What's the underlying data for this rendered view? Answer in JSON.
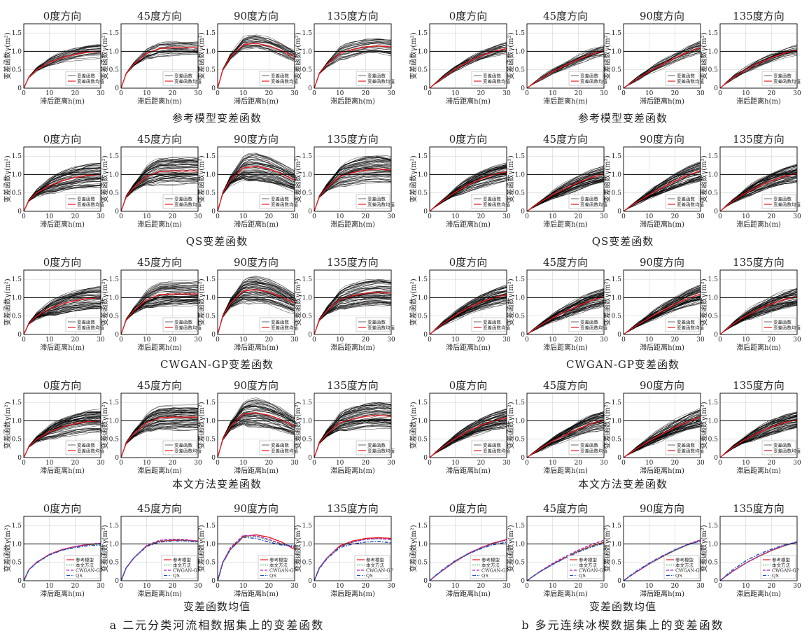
{
  "axes": {
    "xlabel": "滞后距离h(m)",
    "ylabel": "变差函数γ(m²)",
    "xlim": [
      0,
      30
    ],
    "ylim": [
      0,
      1.75
    ],
    "xticks": [
      0,
      10,
      20,
      30
    ],
    "yticks": [
      0,
      0.5,
      1.0,
      1.5
    ],
    "sill": 1.0,
    "grid": true
  },
  "directions": [
    "0度方向",
    "45度方向",
    "90度方向",
    "135度方向"
  ],
  "row_titles": [
    "参考模型变差函数",
    "QS变差函数",
    "CWGAN-GP变差函数",
    "本文方法变差函数",
    "变差函数均值"
  ],
  "legend_single": [
    "变差函数",
    "变差函数均值"
  ],
  "legend_mean": [
    "参考模型",
    "本文方法",
    "CWGAN-GP",
    "QS"
  ],
  "colors": {
    "realization": "#000000",
    "mean": "#e8191e",
    "ours": "#22a33a",
    "cwgan": "#b620c0",
    "qs": "#1f4fc4",
    "sill": "#000000",
    "grid": "#d4d4d4"
  },
  "captions": [
    "a 二元分类河流相数据集上的变差函数",
    "b 多元连续冰楔数据集上的变差函数"
  ],
  "chart_data": [
    {
      "panel": "a",
      "type": "line",
      "title": "a 二元分类河流相数据集上的变差函数",
      "x": [
        0,
        2,
        5,
        10,
        15,
        20,
        25,
        30
      ],
      "means": [
        {
          "direction": "0度方向",
          "values": [
            0,
            0.3,
            0.5,
            0.7,
            0.83,
            0.92,
            0.98,
            1.0
          ]
        },
        {
          "direction": "45度方向",
          "values": [
            0,
            0.4,
            0.65,
            0.95,
            1.08,
            1.1,
            1.1,
            1.1
          ]
        },
        {
          "direction": "90度方向",
          "values": [
            0,
            0.5,
            0.85,
            1.18,
            1.22,
            1.15,
            1.02,
            0.85
          ]
        },
        {
          "direction": "135度方向",
          "values": [
            0,
            0.4,
            0.65,
            0.95,
            1.05,
            1.12,
            1.15,
            1.12
          ]
        }
      ],
      "mean_comparison": [
        {
          "direction": "0度方向",
          "series": [
            {
              "name": "参考模型",
              "values": [
                0,
                0.3,
                0.5,
                0.72,
                0.85,
                0.93,
                0.98,
                1.01
              ]
            },
            {
              "name": "本文方法",
              "values": [
                0,
                0.3,
                0.5,
                0.71,
                0.84,
                0.92,
                0.97,
                1.0
              ]
            },
            {
              "name": "CWGAN-GP",
              "values": [
                0,
                0.3,
                0.5,
                0.71,
                0.84,
                0.93,
                0.99,
                1.02
              ]
            },
            {
              "name": "QS",
              "values": [
                0,
                0.3,
                0.48,
                0.7,
                0.83,
                0.9,
                0.95,
                0.97
              ]
            }
          ]
        },
        {
          "direction": "45度方向",
          "series": [
            {
              "name": "参考模型",
              "values": [
                0,
                0.35,
                0.62,
                0.95,
                1.07,
                1.1,
                1.1,
                1.08
              ]
            },
            {
              "name": "本文方法",
              "values": [
                0,
                0.35,
                0.62,
                0.95,
                1.08,
                1.12,
                1.1,
                1.06
              ]
            },
            {
              "name": "CWGAN-GP",
              "values": [
                0,
                0.35,
                0.62,
                0.96,
                1.1,
                1.13,
                1.12,
                1.07
              ]
            },
            {
              "name": "QS",
              "values": [
                0,
                0.35,
                0.62,
                0.93,
                1.05,
                1.08,
                1.08,
                1.05
              ]
            }
          ]
        },
        {
          "direction": "90度方向",
          "series": [
            {
              "name": "参考模型",
              "values": [
                0,
                0.5,
                0.85,
                1.2,
                1.25,
                1.18,
                1.05,
                0.85
              ]
            },
            {
              "name": "本文方法",
              "values": [
                0,
                0.5,
                0.88,
                1.22,
                1.2,
                1.1,
                1.0,
                0.92
              ]
            },
            {
              "name": "CWGAN-GP",
              "values": [
                0,
                0.5,
                0.9,
                1.23,
                1.22,
                1.12,
                1.0,
                0.9
              ]
            },
            {
              "name": "QS",
              "values": [
                0,
                0.48,
                0.85,
                1.18,
                1.15,
                1.05,
                0.97,
                0.95
              ]
            }
          ]
        },
        {
          "direction": "135度方向",
          "series": [
            {
              "name": "参考模型",
              "values": [
                0,
                0.35,
                0.62,
                0.95,
                1.08,
                1.15,
                1.17,
                1.15
              ]
            },
            {
              "name": "本文方法",
              "values": [
                0,
                0.35,
                0.62,
                0.93,
                1.05,
                1.12,
                1.14,
                1.12
              ]
            },
            {
              "name": "CWGAN-GP",
              "values": [
                0,
                0.35,
                0.62,
                0.92,
                1.05,
                1.13,
                1.15,
                1.12
              ]
            },
            {
              "name": "QS",
              "values": [
                0,
                0.33,
                0.6,
                0.9,
                1.0,
                1.05,
                1.07,
                1.03
              ]
            }
          ]
        }
      ]
    },
    {
      "panel": "b",
      "type": "line",
      "title": "b 多元连续冰楔数据集上的变差函数",
      "x": [
        0,
        2,
        5,
        10,
        15,
        20,
        25,
        30
      ],
      "means": [
        {
          "direction": "0度方向",
          "values": [
            0,
            0.12,
            0.28,
            0.52,
            0.72,
            0.88,
            1.0,
            1.08
          ]
        },
        {
          "direction": "45度方向",
          "values": [
            0,
            0.1,
            0.24,
            0.45,
            0.62,
            0.78,
            0.92,
            1.02
          ]
        },
        {
          "direction": "90度方向",
          "values": [
            0,
            0.1,
            0.24,
            0.45,
            0.64,
            0.82,
            0.98,
            1.1
          ]
        },
        {
          "direction": "135度方向",
          "values": [
            0,
            0.12,
            0.28,
            0.5,
            0.68,
            0.83,
            0.95,
            1.03
          ]
        }
      ],
      "mean_comparison": [
        {
          "direction": "0度方向",
          "series": [
            {
              "name": "参考模型",
              "values": [
                0,
                0.12,
                0.28,
                0.53,
                0.74,
                0.9,
                1.03,
                1.12
              ]
            },
            {
              "name": "本文方法",
              "values": [
                0,
                0.12,
                0.28,
                0.52,
                0.72,
                0.89,
                1.01,
                1.1
              ]
            },
            {
              "name": "CWGAN-GP",
              "values": [
                0,
                0.12,
                0.28,
                0.52,
                0.73,
                0.9,
                1.02,
                1.11
              ]
            },
            {
              "name": "QS",
              "values": [
                0,
                0.13,
                0.3,
                0.55,
                0.73,
                0.87,
                0.98,
                1.05
              ]
            }
          ]
        },
        {
          "direction": "45度方向",
          "series": [
            {
              "name": "参考模型",
              "values": [
                0,
                0.1,
                0.24,
                0.45,
                0.63,
                0.8,
                0.94,
                1.05
              ]
            },
            {
              "name": "本文方法",
              "values": [
                0,
                0.1,
                0.24,
                0.45,
                0.63,
                0.8,
                0.93,
                1.04
              ]
            },
            {
              "name": "CWGAN-GP",
              "values": [
                0,
                0.1,
                0.25,
                0.47,
                0.66,
                0.83,
                0.98,
                1.1
              ]
            },
            {
              "name": "QS",
              "values": [
                0,
                0.1,
                0.24,
                0.44,
                0.62,
                0.78,
                0.91,
                1.02
              ]
            }
          ]
        },
        {
          "direction": "90度方向",
          "series": [
            {
              "name": "参考模型",
              "values": [
                0,
                0.1,
                0.24,
                0.46,
                0.65,
                0.83,
                0.98,
                1.1
              ]
            },
            {
              "name": "本文方法",
              "values": [
                0,
                0.1,
                0.24,
                0.45,
                0.64,
                0.82,
                0.97,
                1.09
              ]
            },
            {
              "name": "CWGAN-GP",
              "values": [
                0,
                0.1,
                0.24,
                0.46,
                0.66,
                0.84,
                0.99,
                1.11
              ]
            },
            {
              "name": "QS",
              "values": [
                0,
                0.11,
                0.26,
                0.48,
                0.67,
                0.84,
                0.98,
                1.08
              ]
            }
          ]
        },
        {
          "direction": "135度方向",
          "series": [
            {
              "name": "参考模型",
              "values": [
                0,
                0.11,
                0.26,
                0.48,
                0.66,
                0.82,
                0.95,
                1.05
              ]
            },
            {
              "name": "本文方法",
              "values": [
                0,
                0.11,
                0.26,
                0.48,
                0.66,
                0.82,
                0.95,
                1.05
              ]
            },
            {
              "name": "CWGAN-GP",
              "values": [
                0,
                0.11,
                0.26,
                0.48,
                0.67,
                0.83,
                0.96,
                1.06
              ]
            },
            {
              "name": "QS",
              "values": [
                0,
                0.13,
                0.3,
                0.54,
                0.72,
                0.86,
                0.97,
                1.05
              ]
            }
          ]
        }
      ]
    }
  ]
}
